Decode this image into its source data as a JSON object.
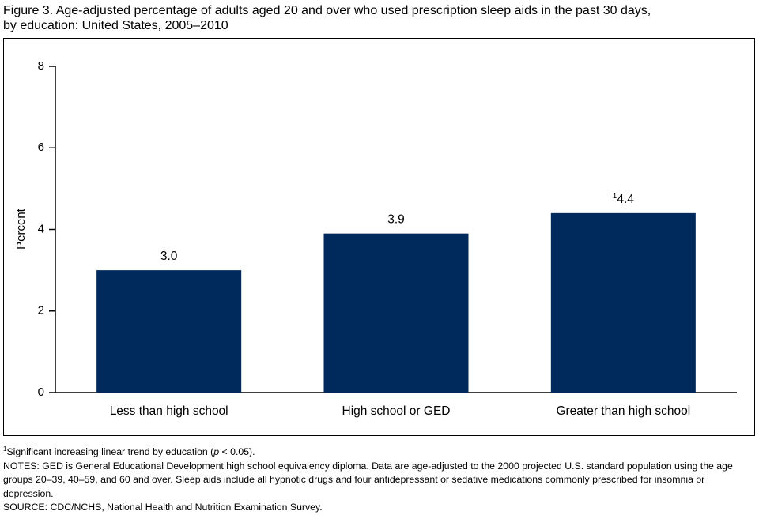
{
  "chart_data": {
    "type": "bar",
    "title": [
      "Figure 3. Age-adjusted percentage of adults aged 20 and over who used prescription sleep aids in the past 30 days,",
      "by education: United States, 2005–2010"
    ],
    "ylabel": "Percent",
    "categories": [
      "Less than high school",
      "High school or GED",
      "Greater than high school"
    ],
    "values": [
      3.0,
      3.9,
      4.4
    ],
    "value_labels": [
      "3.0",
      "3.9",
      "4.4"
    ],
    "value_label_markers": [
      null,
      null,
      "1"
    ],
    "color": "#002a5c",
    "ylim": [
      0,
      8
    ],
    "yticks": [
      0,
      2,
      4,
      6,
      8
    ],
    "grid": false
  },
  "footnote": {
    "marker": "1",
    "before": "Significant increasing linear trend by education (",
    "italic": "p",
    "after": " < 0.05)."
  },
  "notes": "NOTES: GED is General Educational Development high school equivalency diploma. Data are age-adjusted to the 2000 projected U.S. standard population using the age groups 20–39, 40–59, and 60 and over. Sleep aids include all hypnotic drugs and four antidepressant or sedative medications commonly prescribed for insomnia or depression.",
  "source": "SOURCE: CDC/NCHS, National Health and Nutrition Examination Survey."
}
